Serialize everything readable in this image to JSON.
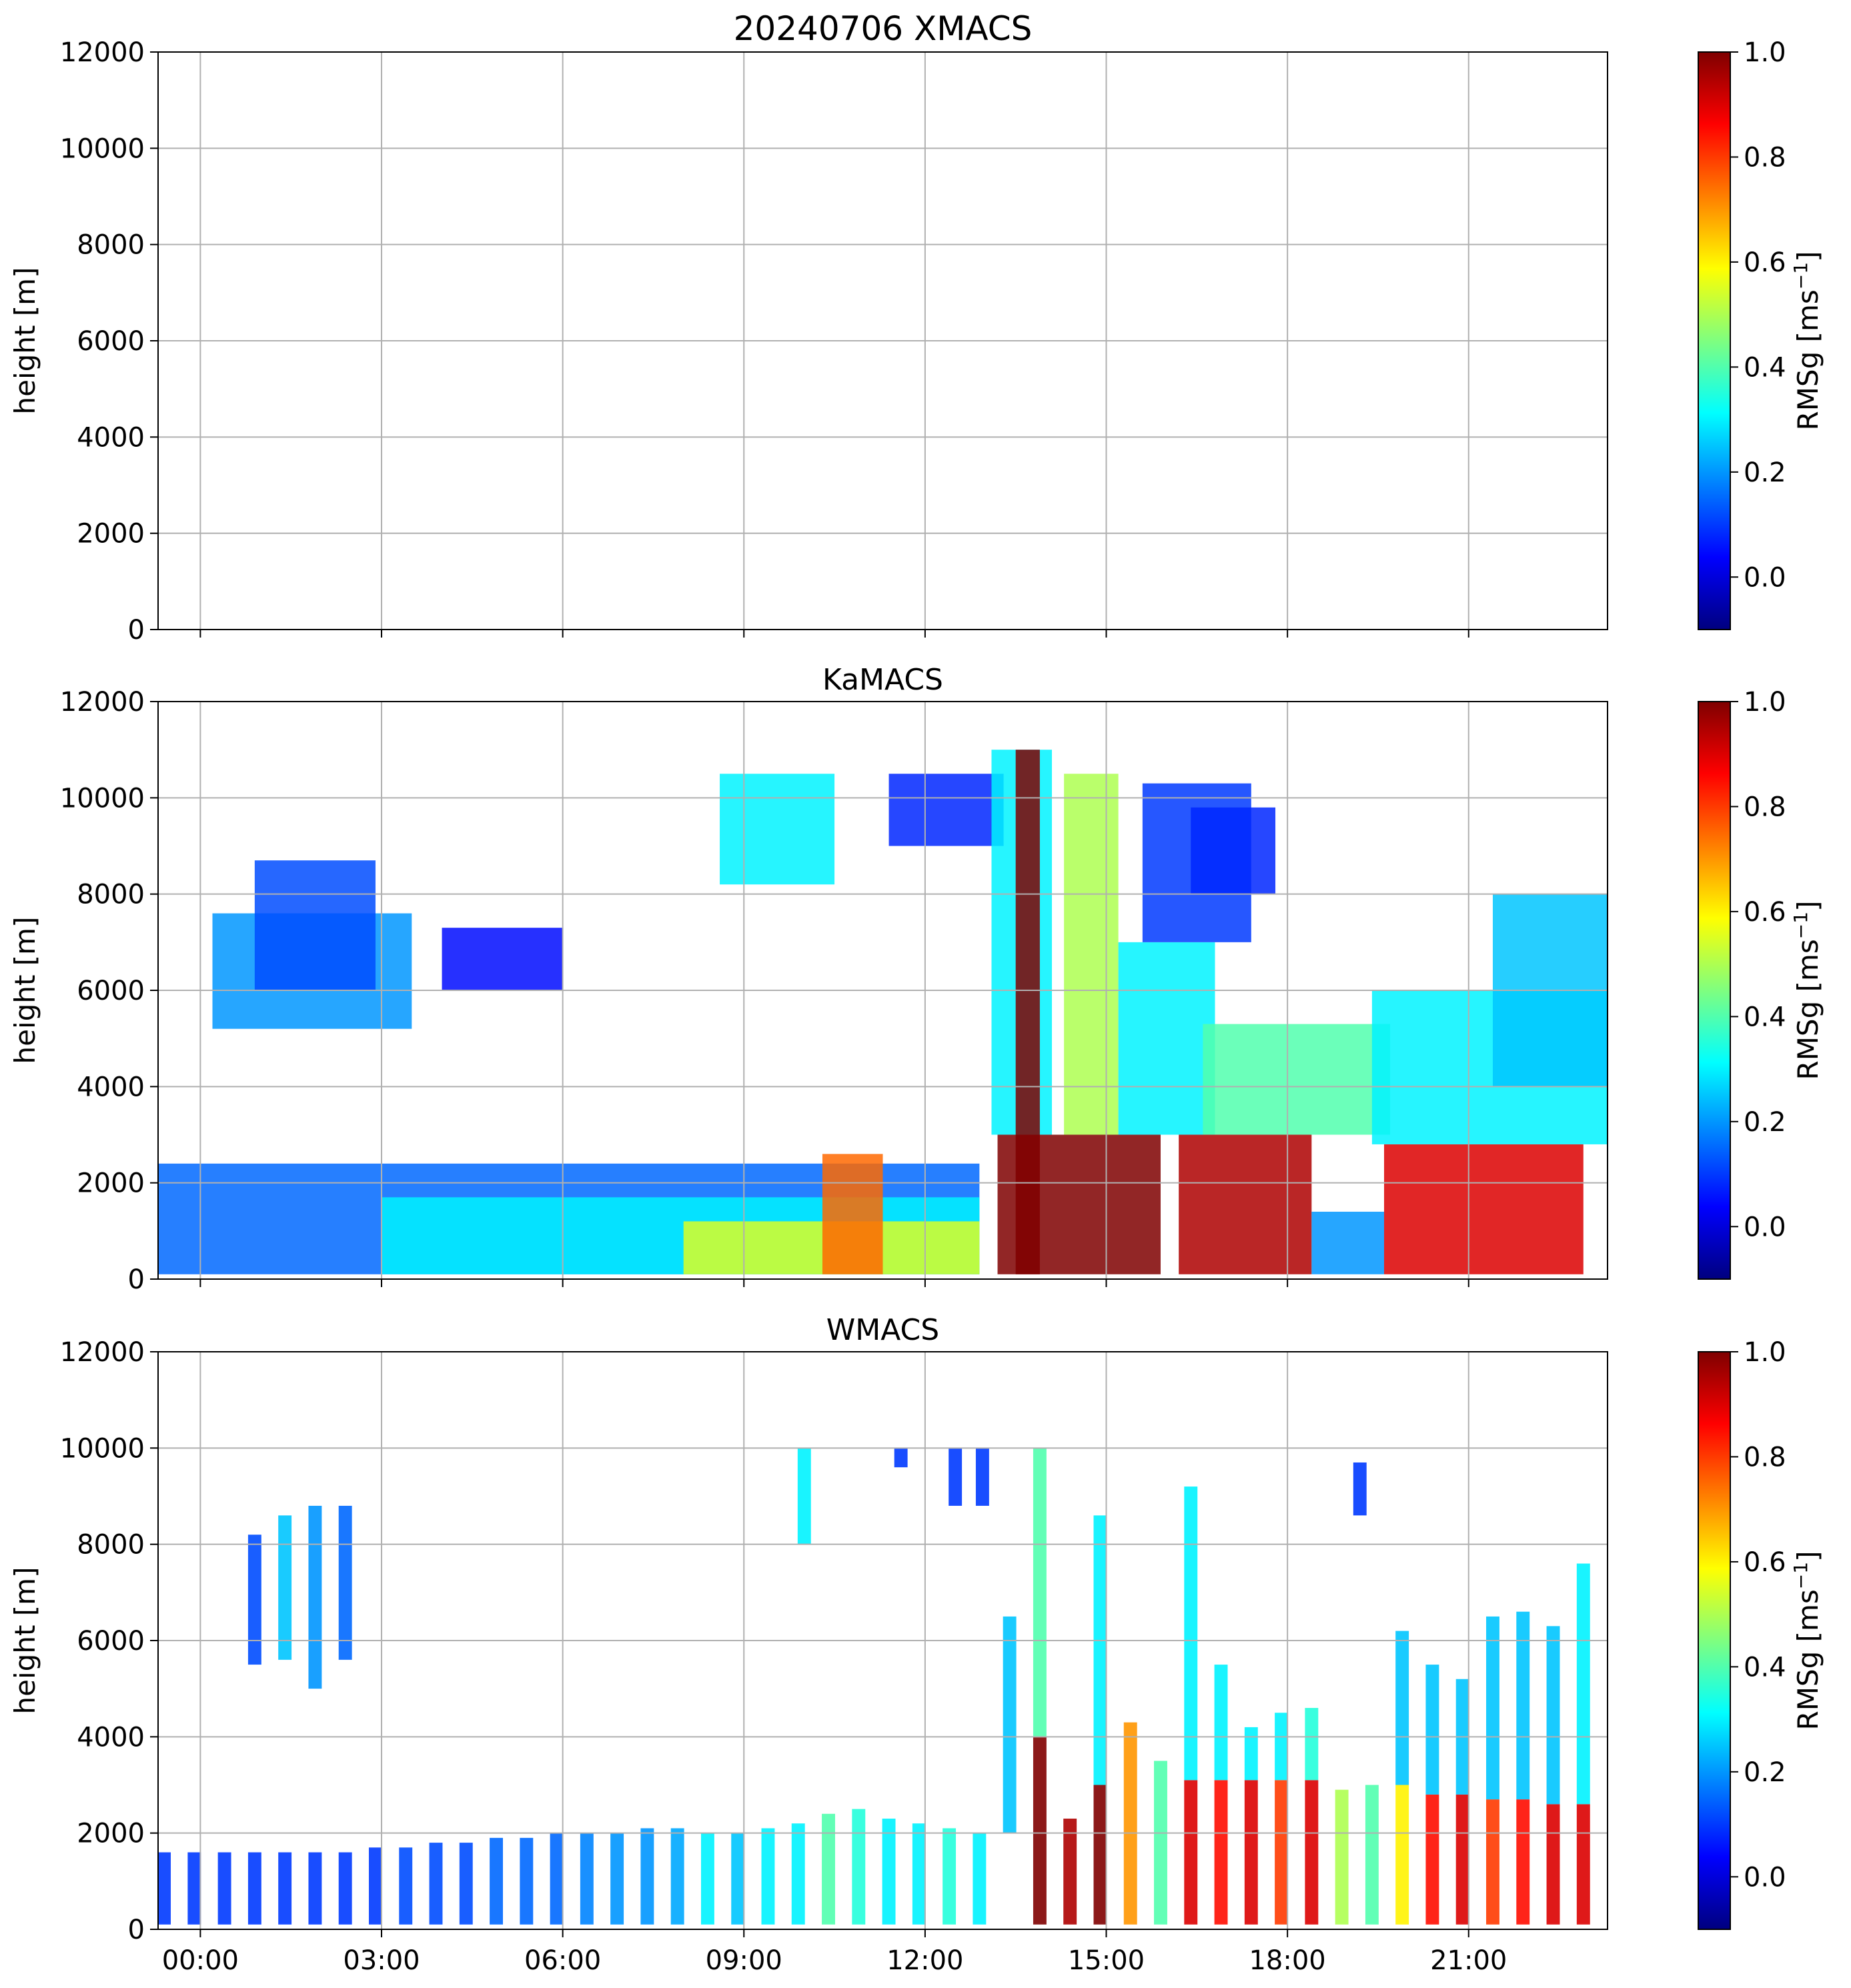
{
  "figure_title": "20240706 XMACS",
  "colormap": [
    "#00007f",
    "#0000ff",
    "#007fff",
    "#00ffff",
    "#7fff7f",
    "#ffff00",
    "#ff7f00",
    "#ff0000",
    "#7f0000"
  ],
  "chart_data": [
    {
      "type": "heatmap",
      "title": "20240706 XMACS",
      "xlabel": "",
      "ylabel": "height [m]",
      "ylim": [
        0,
        12000
      ],
      "xlim_hours": [
        -0.7,
        23.3
      ],
      "x_ticks": [
        "00:00",
        "03:00",
        "06:00",
        "09:00",
        "12:00",
        "15:00",
        "18:00",
        "21:00"
      ],
      "y_ticks": [
        0,
        2000,
        4000,
        6000,
        8000,
        10000,
        12000
      ],
      "grid": true,
      "colorbar": {
        "label": "RMSg [ms",
        "label_sup": "−1",
        "label_end": "]",
        "range": [
          -0.1,
          1.0
        ],
        "ticks": [
          0.0,
          0.2,
          0.4,
          0.6,
          0.8,
          1.0
        ]
      },
      "regions": []
    },
    {
      "type": "heatmap",
      "title": "KaMACS",
      "xlabel": "",
      "ylabel": "height [m]",
      "ylim": [
        0,
        12000
      ],
      "xlim_hours": [
        -0.7,
        23.3
      ],
      "x_ticks": [
        "00:00",
        "03:00",
        "06:00",
        "09:00",
        "12:00",
        "15:00",
        "18:00",
        "21:00"
      ],
      "y_ticks": [
        0,
        2000,
        4000,
        6000,
        8000,
        10000,
        12000
      ],
      "grid": true,
      "colorbar": {
        "label": "RMSg [ms",
        "label_sup": "−1",
        "label_end": "]",
        "range": [
          -0.1,
          1.0
        ],
        "ticks": [
          0.0,
          0.2,
          0.4,
          0.6,
          0.8,
          1.0
        ]
      },
      "regions": [
        {
          "t": [
            -0.7,
            12.9
          ],
          "h": [
            100,
            2400
          ],
          "v": 0.15
        },
        {
          "t": [
            3.0,
            12.9
          ],
          "h": [
            100,
            1700
          ],
          "v": 0.3
        },
        {
          "t": [
            8.0,
            12.9
          ],
          "h": [
            100,
            1200
          ],
          "v": 0.55
        },
        {
          "t": [
            10.3,
            11.3
          ],
          "h": [
            100,
            2600
          ],
          "v": 0.75
        },
        {
          "t": [
            0.2,
            3.5
          ],
          "h": [
            5200,
            7600
          ],
          "v": 0.2
        },
        {
          "t": [
            0.9,
            2.9
          ],
          "h": [
            6000,
            8700
          ],
          "v": 0.12
        },
        {
          "t": [
            4.0,
            6.0
          ],
          "h": [
            6000,
            7300
          ],
          "v": 0.05
        },
        {
          "t": [
            8.6,
            10.5
          ],
          "h": [
            8200,
            10500
          ],
          "v": 0.3
        },
        {
          "t": [
            11.4,
            13.3
          ],
          "h": [
            9000,
            10500
          ],
          "v": 0.08
        },
        {
          "t": [
            13.1,
            14.1
          ],
          "h": [
            3000,
            11000
          ],
          "v": 0.3
        },
        {
          "t": [
            13.5,
            13.9
          ],
          "h": [
            100,
            11000
          ],
          "v": 1.0
        },
        {
          "t": [
            13.2,
            15.9
          ],
          "h": [
            100,
            3000
          ],
          "v": 1.0
        },
        {
          "t": [
            14.3,
            15.2
          ],
          "h": [
            3000,
            10500
          ],
          "v": 0.5
        },
        {
          "t": [
            15.2,
            16.8
          ],
          "h": [
            3000,
            7000
          ],
          "v": 0.3
        },
        {
          "t": [
            15.6,
            17.4
          ],
          "h": [
            7000,
            10300
          ],
          "v": 0.1
        },
        {
          "t": [
            16.2,
            18.4
          ],
          "h": [
            100,
            3000
          ],
          "v": 0.95
        },
        {
          "t": [
            16.4,
            17.8
          ],
          "h": [
            8000,
            9800
          ],
          "v": 0.08
        },
        {
          "t": [
            16.6,
            19.7
          ],
          "h": [
            3000,
            5300
          ],
          "v": 0.4
        },
        {
          "t": [
            18.4,
            19.6
          ],
          "h": [
            100,
            1400
          ],
          "v": 0.2
        },
        {
          "t": [
            19.6,
            22.9
          ],
          "h": [
            100,
            2800
          ],
          "v": 0.9
        },
        {
          "t": [
            19.4,
            23.3
          ],
          "h": [
            2800,
            6000
          ],
          "v": 0.3
        },
        {
          "t": [
            21.4,
            23.3
          ],
          "h": [
            4000,
            8000
          ],
          "v": 0.25
        }
      ]
    },
    {
      "type": "heatmap",
      "title": "WMACS",
      "xlabel": "",
      "ylabel": "height [m]",
      "ylim": [
        0,
        12000
      ],
      "xlim_hours": [
        -0.7,
        23.3
      ],
      "x_ticks": [
        "00:00",
        "03:00",
        "06:00",
        "09:00",
        "12:00",
        "15:00",
        "18:00",
        "21:00"
      ],
      "y_ticks": [
        0,
        2000,
        4000,
        6000,
        8000,
        10000,
        12000
      ],
      "grid": true,
      "colorbar": {
        "label": "RMSg [ms",
        "label_sup": "−1",
        "label_end": "]",
        "range": [
          -0.1,
          1.0
        ],
        "ticks": [
          0.0,
          0.2,
          0.4,
          0.6,
          0.8,
          1.0
        ]
      },
      "stripes": [
        {
          "t": -0.6,
          "h": [
            100,
            1600
          ],
          "v": 0.1
        },
        {
          "t": -0.1,
          "h": [
            100,
            1600
          ],
          "v": 0.1
        },
        {
          "t": 0.4,
          "h": [
            100,
            1600
          ],
          "v": 0.1
        },
        {
          "t": 0.9,
          "h": [
            100,
            1600
          ],
          "v": 0.1
        },
        {
          "t": 1.4,
          "h": [
            100,
            1600
          ],
          "v": 0.1
        },
        {
          "t": 1.9,
          "h": [
            100,
            1600
          ],
          "v": 0.1
        },
        {
          "t": 2.4,
          "h": [
            100,
            1600
          ],
          "v": 0.1
        },
        {
          "t": 2.9,
          "h": [
            100,
            1700
          ],
          "v": 0.1
        },
        {
          "t": 3.4,
          "h": [
            100,
            1700
          ],
          "v": 0.12
        },
        {
          "t": 3.9,
          "h": [
            100,
            1800
          ],
          "v": 0.12
        },
        {
          "t": 4.4,
          "h": [
            100,
            1800
          ],
          "v": 0.12
        },
        {
          "t": 4.9,
          "h": [
            100,
            1900
          ],
          "v": 0.15
        },
        {
          "t": 5.4,
          "h": [
            100,
            1900
          ],
          "v": 0.15
        },
        {
          "t": 5.9,
          "h": [
            100,
            2000
          ],
          "v": 0.15
        },
        {
          "t": 6.4,
          "h": [
            100,
            2000
          ],
          "v": 0.18
        },
        {
          "t": 6.9,
          "h": [
            100,
            2000
          ],
          "v": 0.2
        },
        {
          "t": 7.4,
          "h": [
            100,
            2100
          ],
          "v": 0.2
        },
        {
          "t": 7.9,
          "h": [
            100,
            2100
          ],
          "v": 0.22
        },
        {
          "t": 8.4,
          "h": [
            100,
            2000
          ],
          "v": 0.3
        },
        {
          "t": 8.9,
          "h": [
            100,
            2000
          ],
          "v": 0.25
        },
        {
          "t": 9.4,
          "h": [
            100,
            2100
          ],
          "v": 0.3
        },
        {
          "t": 9.9,
          "h": [
            100,
            2200
          ],
          "v": 0.3
        },
        {
          "t": 10.4,
          "h": [
            100,
            2400
          ],
          "v": 0.4
        },
        {
          "t": 10.9,
          "h": [
            100,
            2500
          ],
          "v": 0.35
        },
        {
          "t": 11.4,
          "h": [
            100,
            2300
          ],
          "v": 0.3
        },
        {
          "t": 11.9,
          "h": [
            100,
            2200
          ],
          "v": 0.3
        },
        {
          "t": 12.4,
          "h": [
            100,
            2100
          ],
          "v": 0.35
        },
        {
          "t": 12.9,
          "h": [
            100,
            2000
          ],
          "v": 0.3
        },
        {
          "t": 0.9,
          "h": [
            5500,
            8200
          ],
          "v": 0.12
        },
        {
          "t": 1.4,
          "h": [
            5600,
            8600
          ],
          "v": 0.25
        },
        {
          "t": 1.9,
          "h": [
            5000,
            8800
          ],
          "v": 0.2
        },
        {
          "t": 2.4,
          "h": [
            5600,
            8800
          ],
          "v": 0.15
        },
        {
          "t": 13.4,
          "h": [
            2000,
            6500
          ],
          "v": 0.25
        },
        {
          "t": 13.9,
          "h": [
            100,
            4000
          ],
          "v": 1.0
        },
        {
          "t": 13.9,
          "h": [
            4000,
            10000
          ],
          "v": 0.4
        },
        {
          "t": 14.4,
          "h": [
            100,
            2300
          ],
          "v": 0.95
        },
        {
          "t": 14.9,
          "h": [
            100,
            3000
          ],
          "v": 1.0
        },
        {
          "t": 14.9,
          "h": [
            3000,
            8600
          ],
          "v": 0.3
        },
        {
          "t": 15.4,
          "h": [
            100,
            4300
          ],
          "v": 0.7
        },
        {
          "t": 15.9,
          "h": [
            100,
            3500
          ],
          "v": 0.4
        },
        {
          "t": 16.4,
          "h": [
            100,
            3100
          ],
          "v": 0.9
        },
        {
          "t": 16.4,
          "h": [
            3100,
            9200
          ],
          "v": 0.3
        },
        {
          "t": 16.9,
          "h": [
            100,
            3100
          ],
          "v": 0.85
        },
        {
          "t": 16.9,
          "h": [
            3100,
            5500
          ],
          "v": 0.3
        },
        {
          "t": 17.4,
          "h": [
            100,
            3100
          ],
          "v": 0.9
        },
        {
          "t": 17.4,
          "h": [
            3100,
            4200
          ],
          "v": 0.3
        },
        {
          "t": 17.9,
          "h": [
            100,
            3100
          ],
          "v": 0.8
        },
        {
          "t": 17.9,
          "h": [
            3100,
            4500
          ],
          "v": 0.3
        },
        {
          "t": 18.4,
          "h": [
            100,
            3100
          ],
          "v": 0.9
        },
        {
          "t": 18.4,
          "h": [
            3100,
            4600
          ],
          "v": 0.35
        },
        {
          "t": 18.9,
          "h": [
            100,
            2900
          ],
          "v": 0.5
        },
        {
          "t": 19.4,
          "h": [
            100,
            3000
          ],
          "v": 0.4
        },
        {
          "t": 19.9,
          "h": [
            100,
            3000
          ],
          "v": 0.6
        },
        {
          "t": 19.9,
          "h": [
            3000,
            6200
          ],
          "v": 0.25
        },
        {
          "t": 20.4,
          "h": [
            100,
            2800
          ],
          "v": 0.85
        },
        {
          "t": 20.4,
          "h": [
            2800,
            5500
          ],
          "v": 0.25
        },
        {
          "t": 20.9,
          "h": [
            100,
            2800
          ],
          "v": 0.9
        },
        {
          "t": 20.9,
          "h": [
            2800,
            5200
          ],
          "v": 0.25
        },
        {
          "t": 21.4,
          "h": [
            100,
            2700
          ],
          "v": 0.8
        },
        {
          "t": 21.4,
          "h": [
            2700,
            6500
          ],
          "v": 0.25
        },
        {
          "t": 21.9,
          "h": [
            100,
            2700
          ],
          "v": 0.85
        },
        {
          "t": 21.9,
          "h": [
            2700,
            6600
          ],
          "v": 0.25
        },
        {
          "t": 22.4,
          "h": [
            100,
            2600
          ],
          "v": 0.9
        },
        {
          "t": 22.4,
          "h": [
            2600,
            6300
          ],
          "v": 0.25
        },
        {
          "t": 22.9,
          "h": [
            100,
            2600
          ],
          "v": 0.9
        },
        {
          "t": 22.9,
          "h": [
            2600,
            7600
          ],
          "v": 0.3
        },
        {
          "t": 10.0,
          "h": [
            8000,
            10000
          ],
          "v": 0.3
        },
        {
          "t": 11.6,
          "h": [
            9600,
            10000
          ],
          "v": 0.1
        },
        {
          "t": 12.5,
          "h": [
            8800,
            10000
          ],
          "v": 0.1
        },
        {
          "t": 12.95,
          "h": [
            8800,
            10000
          ],
          "v": 0.1
        },
        {
          "t": 19.2,
          "h": [
            8600,
            9700
          ],
          "v": 0.1
        }
      ]
    }
  ]
}
